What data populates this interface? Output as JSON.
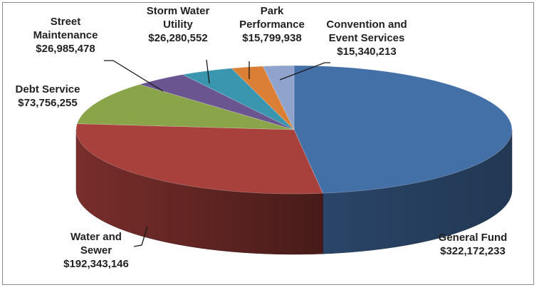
{
  "chart_data": {
    "type": "pie",
    "style": "3d",
    "title": "",
    "legend": "none",
    "slices": [
      {
        "key": "general",
        "label_lines": [
          "General Fund"
        ],
        "value_label": "$322,172,233",
        "value": 322172233,
        "color": "#4470A8"
      },
      {
        "key": "water",
        "label_lines": [
          "Water and",
          "Sewer"
        ],
        "value_label": "$192,343,146",
        "value": 192343146,
        "color": "#A8403C"
      },
      {
        "key": "debt",
        "label_lines": [
          "Debt Service"
        ],
        "value_label": "$73,756,255",
        "value": 73756255,
        "color": "#8AA44A"
      },
      {
        "key": "street",
        "label_lines": [
          "Street",
          "Maintenance"
        ],
        "value_label": "$26,985,478",
        "value": 26985478,
        "color": "#6A5590"
      },
      {
        "key": "storm",
        "label_lines": [
          "Storm Water",
          "Utility"
        ],
        "value_label": "$26,280,552",
        "value": 26280552,
        "color": "#3996AE"
      },
      {
        "key": "park",
        "label_lines": [
          "Park",
          "Performance"
        ],
        "value_label": "$15,799,938",
        "value": 15799938,
        "color": "#DA7F35"
      },
      {
        "key": "convention",
        "label_lines": [
          "Convention and",
          "Event Services"
        ],
        "value_label": "$15,340,213",
        "value": 15340213,
        "color": "#90A3CC"
      }
    ]
  }
}
